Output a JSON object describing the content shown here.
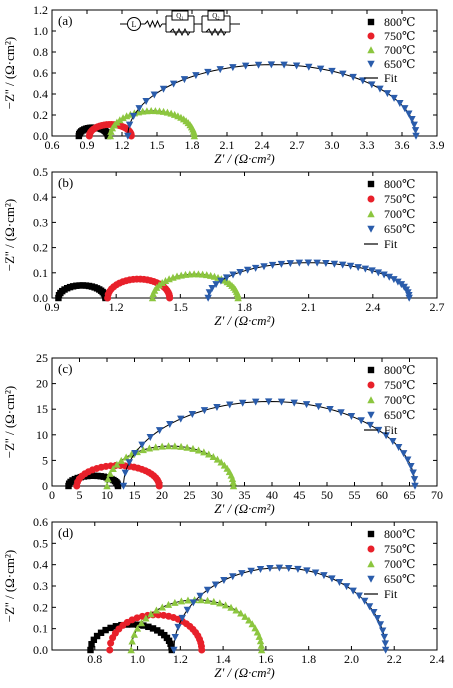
{
  "figure": {
    "legend_labels": [
      "800℃",
      "750℃",
      "700℃",
      "650℃"
    ],
    "fit_label": "Fit",
    "xlabel": "Z' / (Ω·cm²)",
    "ylabel": "−Z'' / (Ω·cm²)",
    "circuit": {
      "inductor": "L",
      "cpe1": "Q₁",
      "cpe2": "Q₂"
    }
  },
  "colors": {
    "800": "#000000",
    "750": "#e8202a",
    "700": "#8cc63f",
    "650": "#2a5cab"
  },
  "chart_data": [
    {
      "type": "scatter",
      "panel_label": "(a)",
      "xlabel": "Z' / (Ω·cm²)",
      "ylabel": "−Z'' / (Ω·cm²)",
      "xlim": [
        0.6,
        3.9
      ],
      "ylim": [
        0.0,
        1.2
      ],
      "xticks": [
        "0.6",
        "0.9",
        "1.2",
        "1.5",
        "1.8",
        "2.1",
        "2.4",
        "2.7",
        "3.0",
        "3.3",
        "3.6",
        "3.9"
      ],
      "yticks": [
        "0.0",
        "0.2",
        "0.4",
        "0.6",
        "0.8",
        "1.0",
        "1.2"
      ],
      "legend": [
        "800℃",
        "750℃",
        "700℃",
        "650℃",
        "Fit"
      ],
      "series": [
        {
          "name": "800℃",
          "marker": "square",
          "arc": {
            "start": 0.83,
            "end": 1.08,
            "peak": 0.08
          }
        },
        {
          "name": "750℃",
          "marker": "circle",
          "arc": {
            "start": 0.92,
            "end": 1.28,
            "peak": 0.11
          }
        },
        {
          "name": "700℃",
          "marker": "triangle-up",
          "arc": {
            "start": 1.1,
            "end": 1.82,
            "peak": 0.24
          }
        },
        {
          "name": "650℃",
          "marker": "triangle-down",
          "arc": {
            "start": 1.25,
            "end": 3.72,
            "peak": 0.68
          }
        }
      ]
    },
    {
      "type": "scatter",
      "panel_label": "(b)",
      "xlabel": "Z' / (Ω·cm²)",
      "ylabel": "−Z'' / (Ω·cm²)",
      "xlim": [
        0.9,
        2.7
      ],
      "ylim": [
        0.0,
        0.5
      ],
      "xticks": [
        "0.9",
        "1.2",
        "1.5",
        "1.8",
        "2.1",
        "2.4",
        "2.7"
      ],
      "yticks": [
        "0.0",
        "0.1",
        "0.2",
        "0.3",
        "0.4",
        "0.5"
      ],
      "legend": [
        "800℃",
        "750℃",
        "700℃",
        "650℃",
        "Fit"
      ],
      "series": [
        {
          "name": "800℃",
          "marker": "square",
          "arc": {
            "start": 0.93,
            "end": 1.15,
            "peak": 0.05
          }
        },
        {
          "name": "750℃",
          "marker": "circle",
          "arc": {
            "start": 1.16,
            "end": 1.45,
            "peak": 0.075
          }
        },
        {
          "name": "700℃",
          "marker": "triangle-up",
          "arc": {
            "start": 1.37,
            "end": 1.77,
            "peak": 0.095
          }
        },
        {
          "name": "650℃",
          "marker": "triangle-down",
          "arc": {
            "start": 1.63,
            "end": 2.57,
            "peak": 0.14
          }
        }
      ]
    },
    {
      "type": "scatter",
      "panel_label": "(c)",
      "xlabel": "Z' / (Ω·cm²)",
      "ylabel": "−Z'' / (Ω·cm²)",
      "xlim": [
        0,
        70
      ],
      "ylim": [
        0,
        25
      ],
      "xticks": [
        "0",
        "5",
        "10",
        "15",
        "20",
        "25",
        "30",
        "35",
        "40",
        "45",
        "50",
        "55",
        "60",
        "65",
        "70"
      ],
      "yticks": [
        "0",
        "5",
        "10",
        "15",
        "20",
        "25"
      ],
      "legend": [
        "800℃",
        "750℃",
        "700℃",
        "650℃",
        "Fit"
      ],
      "series": [
        {
          "name": "800℃",
          "marker": "square",
          "arc": {
            "start": 3.0,
            "end": 12.0,
            "peak": 2.0
          }
        },
        {
          "name": "750℃",
          "marker": "circle",
          "arc": {
            "start": 4.5,
            "end": 19.5,
            "peak": 4.0
          }
        },
        {
          "name": "700℃",
          "marker": "triangle-up",
          "arc": {
            "start": 10.0,
            "end": 33.0,
            "peak": 7.8
          }
        },
        {
          "name": "650℃",
          "marker": "triangle-down",
          "arc": {
            "start": 13.0,
            "end": 66.0,
            "peak": 16.5
          }
        }
      ]
    },
    {
      "type": "scatter",
      "panel_label": "(d)",
      "xlabel": "Z' / (Ω·cm²)",
      "ylabel": "−Z'' / (Ω·cm²)",
      "xlim": [
        0.6,
        2.4
      ],
      "ylim": [
        0.0,
        0.6
      ],
      "xticks": [
        "0.8",
        "1.0",
        "1.2",
        "1.4",
        "1.6",
        "1.8",
        "2.0",
        "2.2",
        "2.4"
      ],
      "yticks": [
        "0.0",
        "0.1",
        "0.2",
        "0.3",
        "0.4",
        "0.5",
        "0.6"
      ],
      "legend": [
        "800℃",
        "750℃",
        "700℃",
        "650℃",
        "Fit"
      ],
      "series": [
        {
          "name": "800℃",
          "marker": "square",
          "arc": {
            "start": 0.78,
            "end": 1.16,
            "peak": 0.12
          }
        },
        {
          "name": "750℃",
          "marker": "circle",
          "arc": {
            "start": 0.87,
            "end": 1.3,
            "peak": 0.165
          }
        },
        {
          "name": "700℃",
          "marker": "triangle-up",
          "arc": {
            "start": 0.97,
            "end": 1.58,
            "peak": 0.235
          }
        },
        {
          "name": "650℃",
          "marker": "triangle-down",
          "arc": {
            "start": 1.17,
            "end": 2.16,
            "peak": 0.385
          }
        }
      ]
    }
  ]
}
